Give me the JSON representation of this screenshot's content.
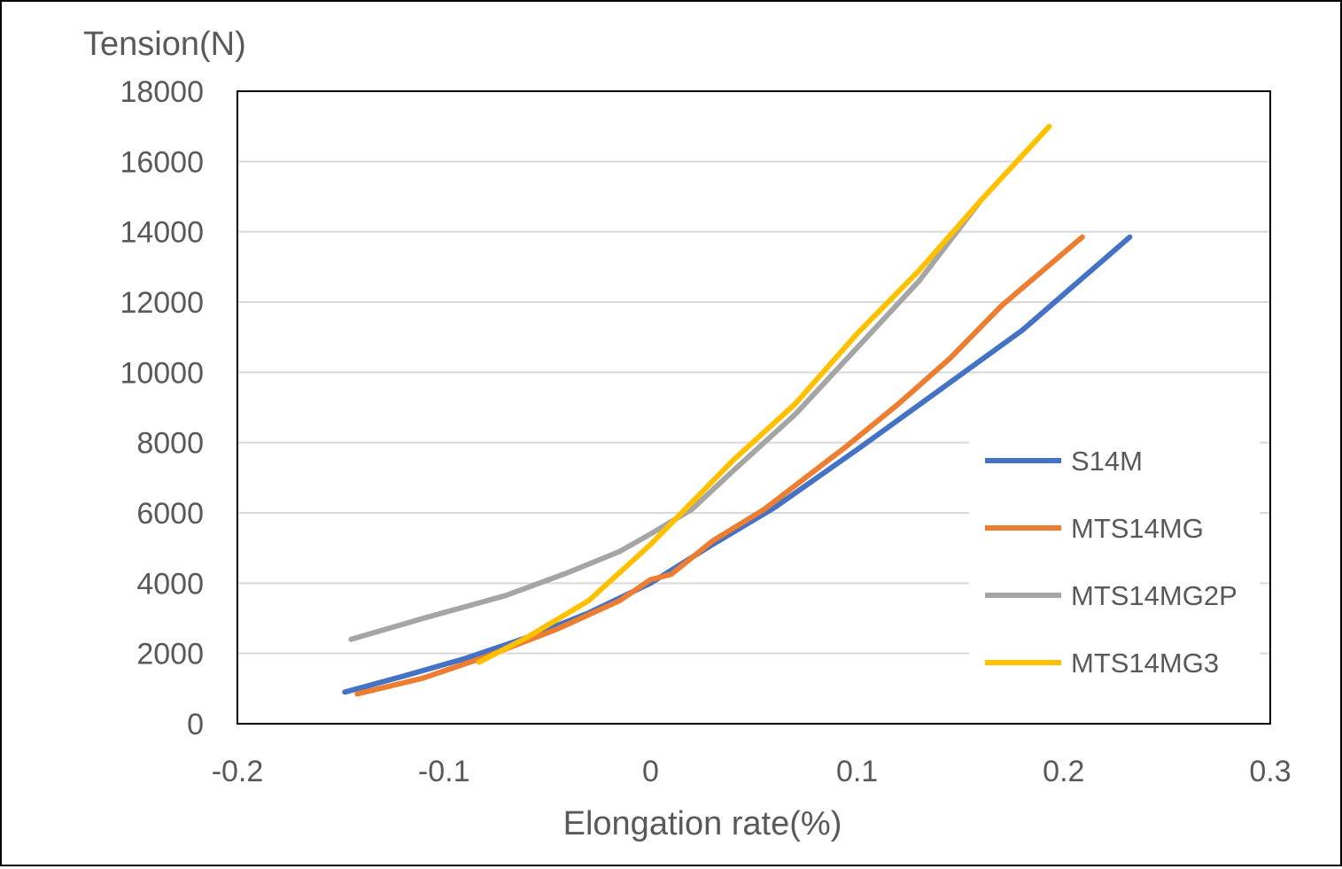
{
  "chart_data": {
    "type": "line",
    "title": "",
    "xlabel": "Elongation rate(%)",
    "ylabel": "Tension(N)",
    "xlim": [
      -0.2,
      0.3
    ],
    "ylim": [
      0,
      18000
    ],
    "x_ticks": [
      "-0.2",
      "-0.1",
      "0",
      "0.1",
      "0.2",
      "0.3"
    ],
    "y_ticks": [
      "0",
      "2000",
      "4000",
      "6000",
      "8000",
      "10000",
      "12000",
      "14000",
      "16000",
      "18000"
    ],
    "grid": "horizontal",
    "legend_position": "right",
    "series": [
      {
        "name": "S14M",
        "color": "#4472C4",
        "points": [
          [
            -0.148,
            900
          ],
          [
            -0.12,
            1350
          ],
          [
            -0.09,
            1850
          ],
          [
            -0.06,
            2450
          ],
          [
            -0.03,
            3150
          ],
          [
            0,
            4000
          ],
          [
            0.03,
            5100
          ],
          [
            0.06,
            6150
          ],
          [
            0.1,
            7800
          ],
          [
            0.14,
            9500
          ],
          [
            0.18,
            11200
          ],
          [
            0.232,
            13850
          ]
        ]
      },
      {
        "name": "MTS14MG",
        "color": "#ED7D31",
        "points": [
          [
            -0.142,
            850
          ],
          [
            -0.11,
            1300
          ],
          [
            -0.08,
            1900
          ],
          [
            -0.045,
            2700
          ],
          [
            -0.015,
            3500
          ],
          [
            0,
            4100
          ],
          [
            0.01,
            4250
          ],
          [
            0.03,
            5200
          ],
          [
            0.055,
            6100
          ],
          [
            0.075,
            7000
          ],
          [
            0.095,
            7900
          ],
          [
            0.12,
            9100
          ],
          [
            0.145,
            10400
          ],
          [
            0.17,
            11900
          ],
          [
            0.209,
            13850
          ]
        ]
      },
      {
        "name": "MTS14MG2P",
        "color": "#A5A5A5",
        "points": [
          [
            -0.145,
            2400
          ],
          [
            -0.11,
            3000
          ],
          [
            -0.07,
            3650
          ],
          [
            -0.04,
            4300
          ],
          [
            -0.015,
            4900
          ],
          [
            0,
            5400
          ],
          [
            0.02,
            6100
          ],
          [
            0.04,
            7200
          ],
          [
            0.07,
            8800
          ],
          [
            0.1,
            10700
          ],
          [
            0.13,
            12600
          ],
          [
            0.16,
            14900
          ]
        ]
      },
      {
        "name": "MTS14MG3",
        "color": "#FFC000",
        "points": [
          [
            -0.083,
            1750
          ],
          [
            -0.06,
            2450
          ],
          [
            -0.03,
            3500
          ],
          [
            0,
            5100
          ],
          [
            0.015,
            6000
          ],
          [
            0.04,
            7500
          ],
          [
            0.07,
            9100
          ],
          [
            0.1,
            11100
          ],
          [
            0.13,
            12900
          ],
          [
            0.16,
            14900
          ],
          [
            0.193,
            17000
          ]
        ]
      }
    ]
  }
}
